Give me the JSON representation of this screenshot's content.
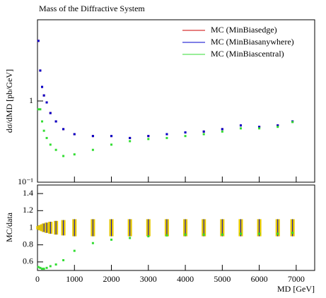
{
  "chart_data": [
    {
      "type": "scatter",
      "title": "Mass of the Diffractive System",
      "ylabel": "dσ/dMD [pb/GeV]",
      "xlim": [
        0,
        7500
      ],
      "ylim": [
        0.1,
        10
      ],
      "log_y": true,
      "yticks": [
        {
          "value": 0.1,
          "label": "10⁻¹"
        },
        1
      ],
      "legend": "upper right",
      "x": [
        25,
        75,
        125,
        175,
        250,
        350,
        500,
        700,
        1000,
        1500,
        2000,
        2500,
        3000,
        3500,
        4000,
        4500,
        5000,
        5500,
        6000,
        6500,
        6900
      ],
      "series": [
        {
          "name": "MC (MinBiasedge)",
          "color": "#cc0000",
          "values": [
            5.5,
            2.37,
            1.49,
            1.17,
            0.96,
            0.71,
            0.56,
            0.45,
            0.39,
            0.37,
            0.37,
            0.35,
            0.37,
            0.39,
            0.41,
            0.42,
            0.45,
            0.5,
            0.48,
            0.5,
            0.56
          ]
        },
        {
          "name": "MC (MinBiasanywhere)",
          "color": "#0000cc",
          "values": [
            5.5,
            2.37,
            1.49,
            1.17,
            0.96,
            0.71,
            0.56,
            0.45,
            0.39,
            0.37,
            0.37,
            0.35,
            0.37,
            0.39,
            0.41,
            0.42,
            0.45,
            0.5,
            0.48,
            0.5,
            0.56
          ]
        },
        {
          "name": "MC (MinBiascentral)",
          "color": "#33dd33",
          "values": [
            0.79,
            0.79,
            0.56,
            0.43,
            0.35,
            0.29,
            0.25,
            0.21,
            0.22,
            0.25,
            0.29,
            0.32,
            0.34,
            0.35,
            0.37,
            0.39,
            0.42,
            0.46,
            0.46,
            0.48,
            0.55
          ]
        }
      ]
    },
    {
      "type": "ratio",
      "xlabel": "MD [GeV]",
      "ylabel": "MC/data",
      "xlim": [
        0,
        7500
      ],
      "ylim": [
        0.5,
        1.5
      ],
      "xticks": [
        0,
        1000,
        2000,
        3000,
        4000,
        5000,
        6000,
        7000
      ],
      "yticks": [
        0.6,
        0.8,
        1,
        1.2,
        1.4
      ],
      "x": [
        25,
        75,
        125,
        175,
        250,
        350,
        500,
        700,
        1000,
        1500,
        2000,
        2500,
        3000,
        3500,
        4000,
        4500,
        5000,
        5500,
        6000,
        6500,
        6900
      ],
      "series": [
        {
          "name": "MC (MinBiasanywhere)",
          "color": "#0000cc",
          "band_color": "#e6c800",
          "values": [
            1,
            1,
            1,
            1,
            1,
            1,
            1,
            1,
            1,
            1,
            1,
            1,
            1,
            1,
            1,
            1,
            1,
            1,
            1,
            1,
            1
          ],
          "errors": [
            0.02,
            0.03,
            0.04,
            0.05,
            0.06,
            0.07,
            0.08,
            0.09,
            0.1,
            0.1,
            0.1,
            0.1,
            0.1,
            0.1,
            0.1,
            0.1,
            0.1,
            0.1,
            0.1,
            0.1,
            0.1
          ]
        },
        {
          "name": "MC (MinBiascentral)",
          "color": "#33dd33",
          "values": [
            0.54,
            0.53,
            0.52,
            0.52,
            0.53,
            0.55,
            0.57,
            0.62,
            0.73,
            0.82,
            0.86,
            0.88,
            0.9,
            0.91,
            0.92,
            0.92,
            0.92,
            0.93,
            0.93,
            0.93,
            0.94
          ]
        }
      ]
    }
  ]
}
